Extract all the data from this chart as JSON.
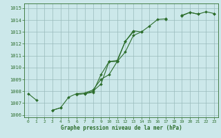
{
  "xlabel": "Graphe pression niveau de la mer (hPa)",
  "bg_color": "#cce8ea",
  "grid_color": "#99bbbb",
  "line_color": "#2d6e2d",
  "marker": "D",
  "x": [
    0,
    1,
    2,
    3,
    4,
    5,
    6,
    7,
    8,
    9,
    10,
    11,
    12,
    13,
    14,
    15,
    16,
    17,
    18,
    19,
    20,
    21,
    22,
    23
  ],
  "line1": [
    1007.8,
    1007.25,
    null,
    1006.4,
    1006.6,
    null,
    1007.7,
    1007.8,
    1007.9,
    1009.4,
    1010.5,
    1010.6,
    1012.2,
    1013.1,
    1013.0,
    null,
    null,
    1014.05,
    null,
    1014.35,
    1014.65,
    1014.5,
    null,
    1014.5
  ],
  "line2": [
    null,
    null,
    null,
    1006.4,
    1006.6,
    1007.5,
    1007.8,
    1007.85,
    1008.1,
    1009.0,
    1009.4,
    1010.5,
    1011.3,
    1012.7,
    1013.0,
    1013.5,
    1014.05,
    1014.1,
    null,
    1014.4,
    1014.65,
    1014.5,
    1014.7,
    1014.55
  ],
  "line3": [
    null,
    null,
    null,
    null,
    null,
    null,
    null,
    1007.8,
    1008.0,
    1008.6,
    1010.5,
    1010.5,
    1012.2,
    1013.0,
    null,
    null,
    null,
    null,
    null,
    null,
    null,
    null,
    null,
    null
  ],
  "ylim": [
    1005.8,
    1015.4
  ],
  "yticks": [
    1006,
    1007,
    1008,
    1009,
    1010,
    1011,
    1012,
    1013,
    1014,
    1015
  ],
  "xlim": [
    -0.5,
    23.5
  ],
  "xticks": [
    0,
    1,
    2,
    3,
    4,
    5,
    6,
    7,
    8,
    9,
    10,
    11,
    12,
    13,
    14,
    15,
    16,
    17,
    18,
    19,
    20,
    21,
    22,
    23
  ]
}
